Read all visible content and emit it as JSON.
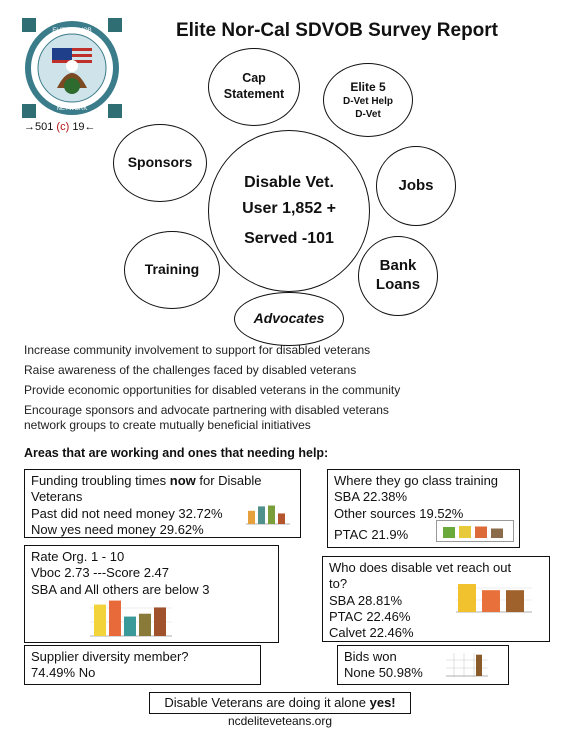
{
  "header": {
    "title": "Elite Nor-Cal SDVOB Survey Report"
  },
  "logo": {
    "text_top": "ELITE SDVOB",
    "text_bottom": "NETWORK",
    "license": {
      "pre": "→501",
      "c": "(c)",
      "post": "19←"
    }
  },
  "bubbles": {
    "center": {
      "line1": "Disable Vet.",
      "line2": "User 1,852 +",
      "line3": "Served -101"
    },
    "cap": {
      "line1": "Cap",
      "line2": "Statement"
    },
    "elite5": {
      "line1": "Elite 5",
      "line2": "D-Vet Help",
      "line3": "D-Vet"
    },
    "sponsors": "Sponsors",
    "jobs": "Jobs",
    "training": "Training",
    "bank": {
      "line1": "Bank",
      "line2": "Loans"
    },
    "advocates": "Advocates"
  },
  "goals": [
    "Increase community involvement to support for disabled veterans",
    "Raise awareness of the challenges faced by disabled veterans",
    "Provide economic opportunities for disabled veterans in the community",
    "Encourage sponsors and advocate partnering with disabled veterans network groups to create mutually beneficial initiatives"
  ],
  "areas_heading": "Areas that are working and ones that needing help:",
  "boxes": {
    "funding": {
      "line1_pre": "Funding troubling times ",
      "line1_bold": "now",
      "line1_post": " for Disable",
      "line2": "Veterans",
      "line3": "Past did not need money 32.72%",
      "line4": "Now yes need money 29.62%"
    },
    "training": {
      "line1": "Where they go class training",
      "line2": "SBA 22.38%",
      "line3": "Other sources 19.52%",
      "line4": "PTAC 21.9%"
    },
    "rate": {
      "line1": "Rate Org. 1 - 10",
      "line2": "Vboc 2.73 ---Score 2.47",
      "line3": "SBA and All others are below 3"
    },
    "reach": {
      "line1": "Who does disable vet reach out",
      "line2": "to?",
      "line3": "SBA 28.81%",
      "line4": "PTAC 22.46%",
      "line5": "Calvet 22.46%"
    },
    "supplier": {
      "line1": "Supplier diversity member?",
      "line2": "74.49% No"
    },
    "bids": {
      "line1": "Bids won",
      "line2": "None 50.98%"
    }
  },
  "footer": {
    "text": "Disable Veterans are doing it alone ",
    "bold": "yes!",
    "website": "ncdeliteveteans.org"
  },
  "chart_data": [
    {
      "type": "bar",
      "id": "funding",
      "values": [
        3,
        4,
        4.2,
        2.4
      ],
      "colors": [
        "#e6a13c",
        "#4f8f8c",
        "#7a9e3a",
        "#b5552e"
      ]
    },
    {
      "type": "bar",
      "id": "training",
      "values": [
        2.2,
        2.4,
        2.3,
        1.9
      ],
      "colors": [
        "#6aaa3a",
        "#e8c93a",
        "#dd6b3a",
        "#8a6b4a"
      ]
    },
    {
      "type": "bar",
      "id": "rate",
      "values": [
        5.5,
        6.2,
        3.4,
        3.9,
        5.0
      ],
      "colors": [
        "#f2d43a",
        "#e86a3a",
        "#3a9a9a",
        "#8a7a3a",
        "#a0522d"
      ]
    },
    {
      "type": "bar",
      "id": "reach",
      "values": [
        28.81,
        22.46,
        22.46
      ],
      "colors": [
        "#f2c12e",
        "#e8703a",
        "#a0622d"
      ]
    },
    {
      "type": "bar",
      "id": "bids",
      "values": [
        50.98
      ],
      "colors": [
        "#8b5a2b"
      ]
    }
  ]
}
